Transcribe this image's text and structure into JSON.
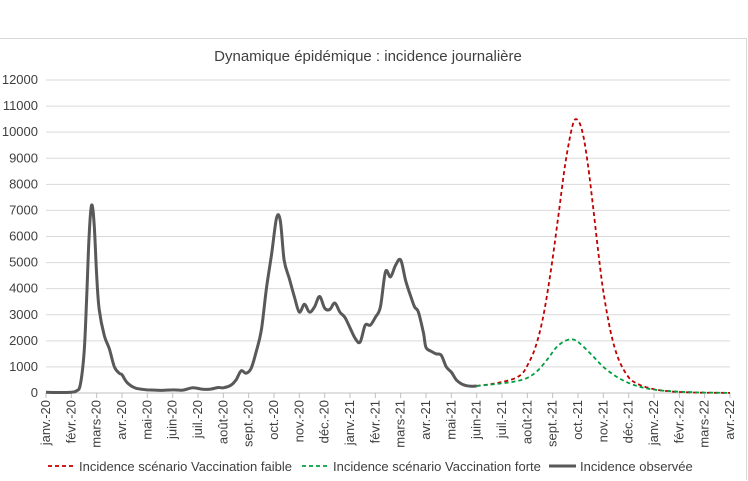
{
  "chart_data": {
    "type": "line",
    "title": "Dynamique épidémique : incidence journalière",
    "xlabel": "",
    "ylabel": "",
    "ylim": [
      0,
      12000
    ],
    "yticks": [
      0,
      1000,
      2000,
      3000,
      4000,
      5000,
      6000,
      7000,
      8000,
      9000,
      10000,
      11000,
      12000
    ],
    "grid": true,
    "legend_position": "bottom",
    "x_tick_labels": [
      "janv.-20",
      "févr.-20",
      "mars-20",
      "avr.-20",
      "mai-20",
      "juin-20",
      "juil.-20",
      "août-20",
      "sept.-20",
      "oct.-20",
      "nov.-20",
      "déc.-20",
      "janv.-21",
      "févr.-21",
      "mars-21",
      "avr.-21",
      "mai-21",
      "juin-21",
      "juil.-21",
      "août-21",
      "sept.-21",
      "oct.-21",
      "nov.-21",
      "déc.-21",
      "janv.-22",
      "févr.-22",
      "mars-22",
      "avr.-22"
    ],
    "series": [
      {
        "name": "Incidence scénario Vaccination faible",
        "color": "#c00000",
        "style": "dashed",
        "x": [
          17.0,
          17.5,
          18.0,
          18.5,
          18.8,
          19.0,
          19.3,
          19.6,
          19.9,
          20.2,
          20.5,
          20.8,
          21.0,
          21.2,
          21.4,
          21.6,
          21.8,
          22.0,
          22.3,
          22.6,
          23.0,
          23.4,
          23.8,
          24.2,
          24.6,
          25.0,
          25.5,
          26.0,
          27.0
        ],
        "y": [
          270,
          330,
          420,
          560,
          750,
          1050,
          1700,
          2800,
          4500,
          6600,
          8800,
          10300,
          10450,
          9900,
          8700,
          7100,
          5400,
          3900,
          2300,
          1300,
          600,
          330,
          190,
          110,
          65,
          40,
          20,
          10,
          5
        ]
      },
      {
        "name": "Incidence scénario Vaccination forte",
        "color": "#00a040",
        "style": "dashed",
        "x": [
          17.0,
          17.5,
          18.0,
          18.5,
          19.0,
          19.4,
          19.8,
          20.1,
          20.4,
          20.7,
          20.9,
          21.1,
          21.4,
          21.7,
          22.0,
          22.4,
          22.8,
          23.2,
          23.6,
          24.0,
          24.5,
          25.0,
          25.5,
          26.0,
          27.0
        ],
        "y": [
          270,
          320,
          370,
          440,
          580,
          850,
          1300,
          1700,
          1950,
          2060,
          2020,
          1880,
          1600,
          1300,
          1000,
          700,
          470,
          310,
          200,
          130,
          80,
          50,
          30,
          15,
          5
        ]
      },
      {
        "name": "Incidence observée",
        "color": "#595959",
        "style": "solid",
        "x": [
          0.0,
          0.5,
          1.0,
          1.2,
          1.35,
          1.5,
          1.6,
          1.7,
          1.8,
          1.9,
          2.0,
          2.1,
          2.3,
          2.5,
          2.7,
          2.9,
          3.0,
          3.2,
          3.5,
          3.8,
          4.0,
          4.3,
          4.6,
          5.0,
          5.4,
          5.8,
          6.2,
          6.5,
          6.8,
          7.0,
          7.3,
          7.5,
          7.7,
          7.9,
          8.1,
          8.3,
          8.5,
          8.7,
          8.9,
          9.1,
          9.25,
          9.4,
          9.6,
          9.8,
          10.0,
          10.2,
          10.4,
          10.6,
          10.8,
          11.0,
          11.2,
          11.4,
          11.6,
          11.8,
          12.0,
          12.2,
          12.4,
          12.6,
          12.8,
          13.0,
          13.2,
          13.4,
          13.6,
          13.8,
          14.0,
          14.2,
          14.4,
          14.55,
          14.7,
          14.9,
          15.0,
          15.2,
          15.4,
          15.6,
          15.8,
          16.0,
          16.2,
          16.4,
          16.6,
          16.8,
          17.0
        ],
        "y": [
          30,
          20,
          30,
          80,
          300,
          1500,
          3500,
          6000,
          7200,
          6500,
          4500,
          3200,
          2200,
          1700,
          1000,
          750,
          700,
          400,
          200,
          140,
          120,
          110,
          100,
          120,
          110,
          200,
          140,
          150,
          210,
          200,
          300,
          500,
          850,
          760,
          950,
          1600,
          2400,
          4000,
          5300,
          6700,
          6600,
          5100,
          4400,
          3700,
          3100,
          3400,
          3100,
          3300,
          3700,
          3250,
          3200,
          3450,
          3100,
          2900,
          2500,
          2100,
          1950,
          2600,
          2600,
          2900,
          3300,
          4650,
          4450,
          4900,
          5100,
          4300,
          3700,
          3300,
          3100,
          2300,
          1750,
          1600,
          1500,
          1450,
          1000,
          800,
          500,
          350,
          280,
          260,
          270
        ]
      }
    ]
  }
}
